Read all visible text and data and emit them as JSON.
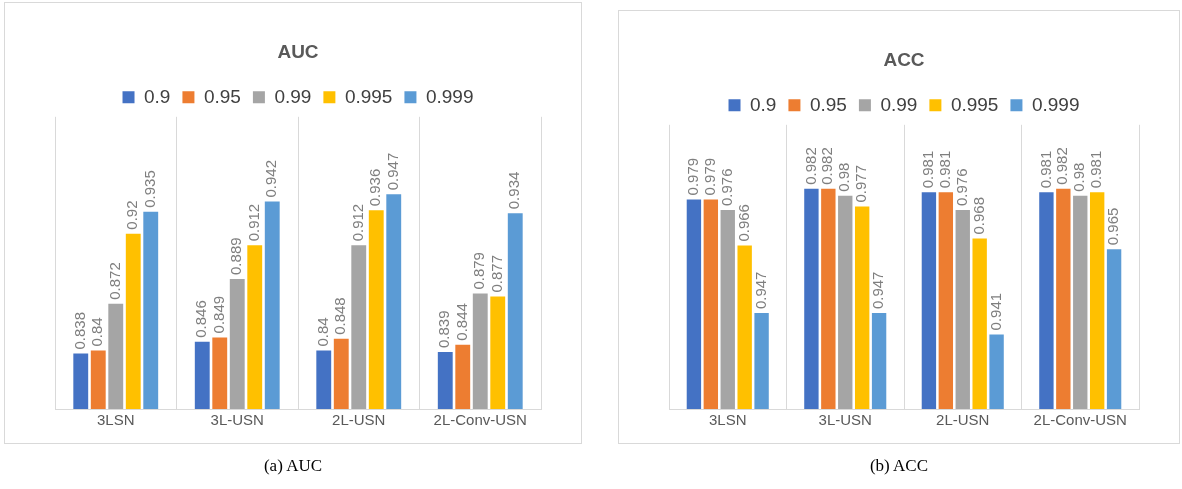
{
  "chart_data": [
    {
      "type": "bar",
      "title": "AUC",
      "categories": [
        "3LSN",
        "3L-USN",
        "2L-USN",
        "2L-Conv-USN"
      ],
      "series": [
        {
          "name": "0.9",
          "color": "#4472c4",
          "values": [
            0.838,
            0.846,
            0.84,
            0.839
          ]
        },
        {
          "name": "0.95",
          "color": "#ed7d31",
          "values": [
            0.84,
            0.849,
            0.848,
            0.844
          ]
        },
        {
          "name": "0.99",
          "color": "#a5a5a5",
          "values": [
            0.872,
            0.889,
            0.912,
            0.879
          ]
        },
        {
          "name": "0.995",
          "color": "#ffc000",
          "values": [
            0.92,
            0.912,
            0.936,
            0.877
          ]
        },
        {
          "name": "0.999",
          "color": "#5b9bd5",
          "values": [
            0.935,
            0.942,
            0.947,
            0.934
          ]
        }
      ],
      "ylim": [
        0.8,
        1.0
      ],
      "tick_labels": "x",
      "grid": "x",
      "legend": "top",
      "data_labels": true,
      "annotations": [
        "(a) AUC"
      ]
    },
    {
      "type": "bar",
      "title": "ACC",
      "categories": [
        "3LSN",
        "3L-USN",
        "2L-USN",
        "2L-Conv-USN"
      ],
      "series": [
        {
          "name": "0.9",
          "color": "#4472c4",
          "values": [
            0.979,
            0.982,
            0.981,
            0.981
          ]
        },
        {
          "name": "0.95",
          "color": "#ed7d31",
          "values": [
            0.979,
            0.982,
            0.981,
            0.982
          ]
        },
        {
          "name": "0.99",
          "color": "#a5a5a5",
          "values": [
            0.976,
            0.98,
            0.976,
            0.98
          ]
        },
        {
          "name": "0.995",
          "color": "#ffc000",
          "values": [
            0.966,
            0.977,
            0.968,
            0.981
          ]
        },
        {
          "name": "0.999",
          "color": "#5b9bd5",
          "values": [
            0.947,
            0.947,
            0.941,
            0.965
          ]
        }
      ],
      "ylim": [
        0.92,
        1.0
      ],
      "tick_labels": "x",
      "grid": "x",
      "legend": "top",
      "data_labels": true,
      "annotations": [
        "(b) ACC"
      ]
    }
  ]
}
